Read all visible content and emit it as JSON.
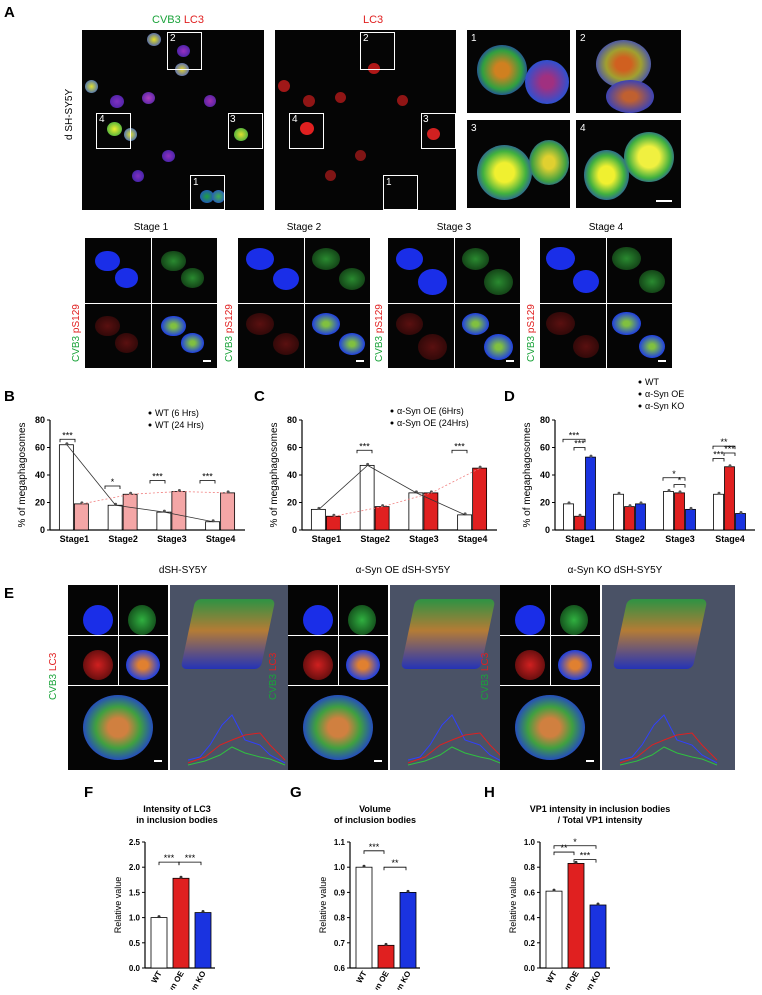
{
  "panel_letters": {
    "a": "A",
    "b": "B",
    "c": "C",
    "d": "D",
    "e": "E",
    "f": "F",
    "g": "G",
    "h": "H"
  },
  "panel_a": {
    "merge_title_green": "CVB3",
    "merge_title_red": "LC3",
    "lc3_title": "LC3",
    "side_label": "d SH-SY5Y",
    "box_numbers": [
      "1",
      "2",
      "3",
      "4"
    ],
    "stage_titles": [
      "Stage 1",
      "Stage 2",
      "Stage 3",
      "Stage 4"
    ],
    "stage_side_green": "CVB3",
    "stage_side_red": "pS129"
  },
  "panel_e": {
    "titles": [
      "dSH-SY5Y",
      "α-Syn OE dSH-SY5Y",
      "α-Syn KO dSH-SY5Y"
    ],
    "side_green": "CVB3",
    "side_red": "LC3"
  },
  "chart_data": [
    {
      "id": "B",
      "type": "bar",
      "ylabel": "% of megaphagosomes",
      "categories": [
        "Stage1",
        "Stage2",
        "Stage3",
        "Stage4"
      ],
      "ylim": [
        0,
        80
      ],
      "yticks": [
        0,
        20,
        40,
        60,
        80
      ],
      "series": [
        {
          "name": "WT (6 Hrs)",
          "values": [
            62,
            18,
            13,
            6
          ],
          "color": "#ffffff"
        },
        {
          "name": "WT (24 Hrs)",
          "values": [
            19,
            26,
            28,
            27
          ],
          "color": "#f4a6a6"
        }
      ],
      "significance": [
        "***",
        "*",
        "***",
        "***"
      ]
    },
    {
      "id": "C",
      "type": "bar",
      "ylabel": "% of megaphagosomes",
      "categories": [
        "Stage1",
        "Stage2",
        "Stage3",
        "Stage4"
      ],
      "ylim": [
        0,
        80
      ],
      "yticks": [
        0,
        20,
        40,
        60,
        80
      ],
      "series": [
        {
          "name": "α-Syn OE (6Hrs)",
          "values": [
            15,
            47,
            27,
            11
          ],
          "color": "#ffffff"
        },
        {
          "name": "α-Syn OE (24Hrs)",
          "values": [
            10,
            17,
            27,
            45
          ],
          "color": "#e02020"
        }
      ],
      "significance": [
        "***",
        "***"
      ]
    },
    {
      "id": "D",
      "type": "bar",
      "ylabel": "% of megaphagosomes",
      "categories": [
        "Stage1",
        "Stage2",
        "Stage3",
        "Stage4"
      ],
      "ylim": [
        0,
        80
      ],
      "yticks": [
        0,
        20,
        40,
        60,
        80
      ],
      "series": [
        {
          "name": "WT",
          "values": [
            19,
            26,
            28,
            26
          ],
          "color": "#ffffff"
        },
        {
          "name": "α-Syn OE",
          "values": [
            10,
            17,
            27,
            46
          ],
          "color": "#e02020"
        },
        {
          "name": "α-Syn KO",
          "values": [
            53,
            19,
            15,
            12
          ],
          "color": "#1a33e0"
        }
      ],
      "significance": [
        "***",
        "***",
        "*",
        "*",
        "**",
        "***",
        "***"
      ]
    },
    {
      "id": "F",
      "type": "bar",
      "title": "Intensity of LC3",
      "subtitle": "in inclusion bodies",
      "ylabel": "Relative value",
      "categories": [
        "WT",
        "α-Syn OE",
        "α-Syn KO"
      ],
      "values": [
        1.0,
        1.78,
        1.1
      ],
      "colors": [
        "#ffffff",
        "#e02020",
        "#1a33e0"
      ],
      "ylim": [
        0,
        2.5
      ],
      "yticks": [
        "0.0",
        "0.5",
        "1.0",
        "1.5",
        "2.0",
        "2.5"
      ],
      "significance": [
        "***",
        "***"
      ]
    },
    {
      "id": "G",
      "type": "bar",
      "title": "Volume",
      "subtitle": "of inclusion bodies",
      "ylabel": "Relative value",
      "categories": [
        "WT",
        "α-Syn OE",
        "α-Syn KO"
      ],
      "values": [
        1.0,
        0.69,
        0.9
      ],
      "colors": [
        "#ffffff",
        "#e02020",
        "#1a33e0"
      ],
      "ylim": [
        0.6,
        1.1
      ],
      "yticks": [
        "0.6",
        "0.7",
        "0.8",
        "0.9",
        "1.0",
        "1.1"
      ],
      "significance": [
        "***",
        "**"
      ]
    },
    {
      "id": "H",
      "type": "bar",
      "title": "VP1 intensity in inclusion bodies",
      "subtitle": "/ Total VP1 intensity",
      "ylabel": "Relative value",
      "categories": [
        "WT",
        "α-Syn OE",
        "α-Syn KO"
      ],
      "values": [
        0.61,
        0.83,
        0.5
      ],
      "colors": [
        "#ffffff",
        "#e02020",
        "#1a33e0"
      ],
      "ylim": [
        0,
        1.0
      ],
      "yticks": [
        "0.0",
        "0.2",
        "0.4",
        "0.6",
        "0.8",
        "1.0"
      ],
      "significance": [
        "*",
        "**",
        "***"
      ]
    }
  ]
}
